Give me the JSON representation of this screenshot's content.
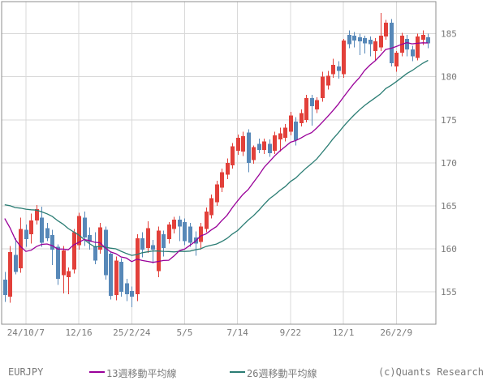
{
  "chart_data": {
    "type": "candlestick",
    "symbol": "EURJPY",
    "copyright_label": "(c)Quants Research",
    "timeframe": "weekly",
    "x_axis": {
      "ticks": [
        {
          "label": "24/10/7",
          "week": 4
        },
        {
          "label": "12/16",
          "week": 14
        },
        {
          "label": "25/2/24",
          "week": 24
        },
        {
          "label": "5/5",
          "week": 34
        },
        {
          "label": "7/14",
          "week": 44
        },
        {
          "label": "9/22",
          "week": 54
        },
        {
          "label": "12/1",
          "week": 64
        },
        {
          "label": "26/2/9",
          "week": 74
        }
      ]
    },
    "y_axis": {
      "side": "right",
      "ticks": [
        {
          "label": "185",
          "value": 185
        },
        {
          "label": "180",
          "value": 180
        },
        {
          "label": "175",
          "value": 175
        },
        {
          "label": "170",
          "value": 170
        },
        {
          "label": "165",
          "value": 165
        },
        {
          "label": "160",
          "value": 160
        },
        {
          "label": "155",
          "value": 155
        }
      ],
      "min_visible": 151.3,
      "max_visible": 188.7
    },
    "grid": true,
    "legend_position": "bottom",
    "moving_averages": [
      {
        "label": "13週移動平均線",
        "period": 13,
        "color": "#990099"
      },
      {
        "label": "26週移動平均線",
        "period": 26,
        "color": "#2b7d74"
      }
    ],
    "colors": {
      "up_candle": "#e2403a",
      "down_candle": "#5788b8",
      "grid_line": "#d9d9d9",
      "frame": "#8c8c8c",
      "text": "#7a7a7a",
      "background": "#ffffff"
    },
    "pre_window_closes": [
      162.5,
      163.0,
      163.8,
      164.5,
      165.0,
      165.5,
      166.2,
      167.0,
      168.0,
      169.0,
      170.0,
      171.0,
      171.8,
      173.5,
      174.8,
      173.2,
      168.5,
      161.5,
      159.0,
      157.5,
      160.5,
      162.5,
      161.5,
      160.0,
      158.5
    ],
    "candles_ohlc": [
      [
        156.4,
        157.3,
        153.8,
        154.6
      ],
      [
        154.4,
        160.3,
        153.7,
        159.6
      ],
      [
        159.3,
        161.2,
        157.0,
        157.3
      ],
      [
        157.7,
        163.6,
        157.2,
        162.3
      ],
      [
        162.2,
        162.8,
        160.2,
        161.1
      ],
      [
        161.7,
        164.1,
        160.6,
        163.3
      ],
      [
        163.3,
        165.1,
        162.8,
        164.6
      ],
      [
        163.6,
        164.9,
        160.2,
        160.7
      ],
      [
        162.4,
        163.0,
        160.9,
        161.2
      ],
      [
        161.6,
        162.2,
        158.1,
        159.9
      ],
      [
        160.2,
        160.5,
        155.8,
        156.5
      ],
      [
        156.9,
        160.3,
        154.8,
        159.8
      ],
      [
        156.7,
        157.8,
        154.7,
        157.4
      ],
      [
        157.6,
        162.3,
        157.1,
        161.9
      ],
      [
        160.4,
        164.2,
        159.9,
        163.8
      ],
      [
        163.6,
        164.3,
        160.3,
        161.3
      ],
      [
        161.6,
        162.5,
        159.9,
        160.8
      ],
      [
        160.3,
        161.9,
        158.2,
        158.6
      ],
      [
        159.9,
        163.0,
        159.4,
        162.5
      ],
      [
        162.2,
        162.6,
        156.4,
        156.9
      ],
      [
        159.4,
        159.6,
        154.1,
        154.5
      ],
      [
        154.6,
        159.1,
        154.0,
        158.6
      ],
      [
        158.5,
        158.9,
        154.4,
        155.0
      ],
      [
        156.0,
        156.5,
        153.9,
        154.7
      ],
      [
        155.1,
        155.6,
        153.2,
        154.4
      ],
      [
        154.7,
        161.7,
        153.9,
        161.2
      ],
      [
        161.2,
        161.9,
        159.0,
        159.9
      ],
      [
        160.1,
        163.2,
        159.5,
        162.4
      ],
      [
        160.4,
        161.0,
        158.3,
        159.9
      ],
      [
        157.4,
        162.6,
        156.7,
        162.1
      ],
      [
        161.7,
        162.1,
        159.1,
        160.1
      ],
      [
        161.1,
        163.1,
        160.6,
        162.8
      ],
      [
        162.3,
        163.7,
        161.8,
        163.4
      ],
      [
        163.4,
        163.8,
        160.9,
        162.6
      ],
      [
        163.1,
        163.5,
        160.4,
        160.9
      ],
      [
        162.6,
        163.0,
        160.2,
        160.7
      ],
      [
        161.3,
        162.0,
        159.2,
        160.6
      ],
      [
        160.8,
        163.0,
        159.9,
        162.6
      ],
      [
        162.3,
        164.8,
        161.9,
        164.3
      ],
      [
        163.9,
        166.3,
        163.5,
        165.9
      ],
      [
        165.4,
        167.9,
        165.0,
        167.5
      ],
      [
        167.1,
        169.3,
        166.6,
        168.9
      ],
      [
        168.6,
        170.5,
        168.1,
        170.0
      ],
      [
        169.7,
        172.3,
        169.3,
        171.9
      ],
      [
        171.4,
        173.3,
        170.9,
        172.9
      ],
      [
        171.3,
        173.6,
        170.8,
        173.1
      ],
      [
        173.5,
        173.9,
        168.9,
        170.0
      ],
      [
        170.3,
        172.0,
        169.9,
        171.8
      ],
      [
        172.2,
        172.8,
        171.1,
        171.5
      ],
      [
        171.5,
        172.8,
        171.0,
        172.5
      ],
      [
        172.2,
        172.7,
        170.7,
        171.1
      ],
      [
        171.4,
        173.6,
        171.0,
        173.2
      ],
      [
        172.7,
        174.1,
        171.3,
        173.4
      ],
      [
        172.9,
        174.5,
        172.5,
        174.1
      ],
      [
        173.6,
        175.9,
        173.2,
        175.5
      ],
      [
        174.8,
        175.3,
        172.0,
        172.6
      ],
      [
        174.6,
        176.2,
        174.2,
        175.8
      ],
      [
        175.0,
        177.9,
        174.7,
        177.5
      ],
      [
        177.5,
        177.9,
        174.3,
        176.6
      ],
      [
        176.2,
        177.6,
        175.8,
        177.3
      ],
      [
        177.5,
        180.6,
        177.1,
        180.0
      ],
      [
        179.0,
        180.7,
        178.5,
        180.1
      ],
      [
        180.3,
        182.1,
        179.9,
        181.4
      ],
      [
        181.2,
        181.8,
        179.8,
        180.7
      ],
      [
        180.3,
        184.4,
        179.9,
        184.2
      ],
      [
        184.9,
        185.4,
        183.3,
        183.8
      ],
      [
        184.8,
        185.2,
        183.4,
        184.2
      ],
      [
        184.6,
        185.0,
        182.5,
        184.1
      ],
      [
        184.5,
        184.8,
        182.7,
        183.9
      ],
      [
        184.3,
        184.7,
        182.4,
        183.8
      ],
      [
        183.0,
        184.5,
        181.9,
        184.1
      ],
      [
        183.4,
        187.4,
        183.0,
        184.8
      ],
      [
        184.7,
        186.6,
        184.3,
        186.3
      ],
      [
        186.3,
        186.7,
        181.2,
        181.6
      ],
      [
        181.2,
        183.0,
        180.6,
        182.8
      ],
      [
        182.8,
        185.1,
        182.4,
        184.8
      ],
      [
        184.4,
        184.9,
        182.4,
        183.2
      ],
      [
        183.2,
        183.6,
        181.8,
        182.4
      ],
      [
        182.2,
        185.0,
        181.9,
        184.7
      ],
      [
        184.3,
        185.4,
        183.7,
        184.9
      ],
      [
        184.6,
        185.0,
        183.3,
        183.9
      ]
    ]
  },
  "legend": {
    "symbol_label": "EURJPY",
    "ma13_label": "13週移動平均線",
    "ma26_label": "26週移動平均線",
    "copyright_label": "(c)Quants Research"
  }
}
